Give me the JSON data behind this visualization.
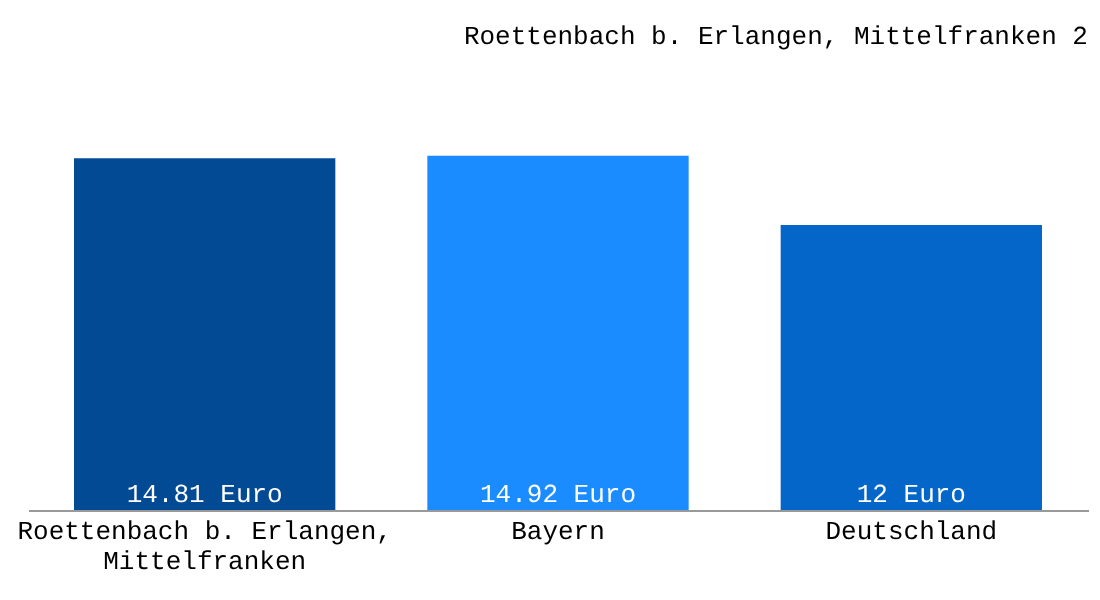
{
  "chart_data": {
    "type": "bar",
    "title": "Roettenbach b. Erlangen, Mittelfranken 2",
    "categories": [
      "Roettenbach b. Erlangen, Mittelfranken",
      "Bayern",
      "Deutschland"
    ],
    "values": [
      14.81,
      14.92,
      12
    ],
    "value_labels": [
      "14.81 Euro",
      "14.92 Euro",
      "12 Euro"
    ],
    "colors": [
      "#034a94",
      "#1a8cff",
      "#0466c8"
    ],
    "grid": false
  }
}
